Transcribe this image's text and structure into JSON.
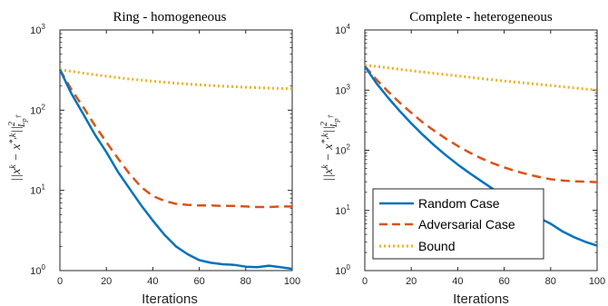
{
  "chart_data": [
    {
      "type": "line",
      "title": "Ring - homogeneous",
      "xlabel": "Iterations",
      "ylabel": "||x^k − x^{*,k}||²_{L_p^†}",
      "xlim": [
        0,
        100
      ],
      "ylim": [
        1,
        1000
      ],
      "yscale": "log",
      "xticks": [
        "0",
        "20",
        "40",
        "60",
        "80",
        "100"
      ],
      "yticks": [
        "10^0",
        "10^1",
        "10^2",
        "10^3"
      ],
      "grid": false,
      "legend": null,
      "series": [
        {
          "name": "Random Case",
          "color": "#0072BD",
          "style": "solid",
          "x": [
            0,
            5,
            10,
            15,
            20,
            25,
            30,
            35,
            40,
            45,
            50,
            55,
            60,
            65,
            70,
            75,
            80,
            85,
            90,
            95,
            100
          ],
          "y": [
            320,
            160,
            90,
            50,
            30,
            17,
            10.5,
            6.5,
            4.2,
            2.8,
            2.0,
            1.6,
            1.35,
            1.25,
            1.2,
            1.18,
            1.12,
            1.1,
            1.15,
            1.1,
            1.05
          ]
        },
        {
          "name": "Adversarial Case",
          "color": "#D95319",
          "style": "dashed",
          "x": [
            0,
            5,
            10,
            15,
            20,
            25,
            30,
            35,
            40,
            45,
            50,
            55,
            60,
            65,
            70,
            75,
            80,
            85,
            90,
            95,
            100
          ],
          "y": [
            320,
            180,
            110,
            65,
            40,
            25,
            16,
            11,
            8.5,
            7.4,
            6.8,
            6.6,
            6.5,
            6.5,
            6.4,
            6.4,
            6.3,
            6.2,
            6.2,
            6.3,
            6.3
          ]
        },
        {
          "name": "Bound",
          "color": "#EDB120",
          "style": "dotted",
          "x": [
            0,
            10,
            20,
            30,
            40,
            50,
            60,
            70,
            80,
            90,
            100
          ],
          "y": [
            320,
            290,
            265,
            245,
            230,
            217,
            207,
            199,
            193,
            188,
            185
          ]
        }
      ]
    },
    {
      "type": "line",
      "title": "Complete - heterogeneous",
      "xlabel": "Iterations",
      "ylabel": "||x^k − x^{*,k}||²_{L_p^†}",
      "xlim": [
        0,
        100
      ],
      "ylim": [
        1,
        10000
      ],
      "yscale": "log",
      "xticks": [
        "0",
        "20",
        "40",
        "60",
        "80",
        "100"
      ],
      "yticks": [
        "10^0",
        "10^1",
        "10^2",
        "10^3",
        "10^4"
      ],
      "grid": false,
      "legend": "lower-left",
      "series": [
        {
          "name": "Random Case",
          "color": "#0072BD",
          "style": "solid",
          "x": [
            0,
            5,
            10,
            15,
            20,
            25,
            30,
            35,
            40,
            45,
            50,
            55,
            60,
            65,
            70,
            75,
            80,
            85,
            90,
            95,
            100
          ],
          "y": [
            2500,
            1300,
            750,
            450,
            280,
            180,
            120,
            82,
            58,
            42,
            31,
            23,
            17,
            13,
            10,
            7.5,
            6,
            4.5,
            3.6,
            3.0,
            2.6
          ]
        },
        {
          "name": "Adversarial Case",
          "color": "#D95319",
          "style": "dashed",
          "x": [
            0,
            5,
            10,
            15,
            20,
            25,
            30,
            35,
            40,
            45,
            50,
            55,
            60,
            65,
            70,
            75,
            80,
            85,
            90,
            95,
            100
          ],
          "y": [
            2500,
            1500,
            950,
            620,
            420,
            290,
            210,
            155,
            118,
            92,
            74,
            61,
            52,
            45,
            40,
            36,
            33,
            31.5,
            30.5,
            30,
            29.5
          ]
        },
        {
          "name": "Bound",
          "color": "#EDB120",
          "style": "dotted",
          "x": [
            0,
            10,
            20,
            30,
            40,
            50,
            60,
            70,
            80,
            90,
            100
          ],
          "y": [
            2600,
            2350,
            2100,
            1900,
            1720,
            1560,
            1420,
            1300,
            1190,
            1090,
            1000
          ]
        }
      ]
    }
  ],
  "legend": {
    "entries": [
      "Random Case",
      "Adversarial Case",
      "Bound"
    ]
  }
}
